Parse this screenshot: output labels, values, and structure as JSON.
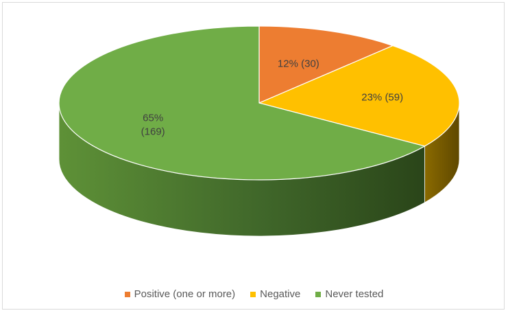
{
  "chart_data": {
    "type": "pie",
    "title": "",
    "categories": [
      "Positive (one or more)",
      "Negative",
      "Never tested"
    ],
    "values": [
      30,
      59,
      169
    ],
    "percent_labels": [
      "12%",
      "23%",
      "65%"
    ],
    "data_labels": [
      "12% (30)",
      "23% (59)",
      "65% (169)"
    ],
    "colors": [
      "#ed7d31",
      "#ffc000",
      "#70ad47"
    ],
    "side_colors": [
      "#b35a1f",
      "#7f6000",
      "#375623"
    ],
    "style": "3d-pie",
    "legend_position": "bottom"
  },
  "legend": {
    "items": [
      {
        "label": "Positive (one or more)",
        "color": "#ed7d31"
      },
      {
        "label": "Negative",
        "color": "#ffc000"
      },
      {
        "label": "Never tested",
        "color": "#70ad47"
      }
    ]
  }
}
